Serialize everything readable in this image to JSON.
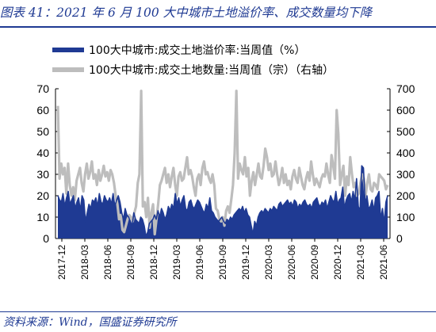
{
  "header": {
    "title": "图表 41：2021 年 6 月 100 大中城市土地溢价率、成交数量均下降"
  },
  "footer": {
    "source": "资料来源：Wind，国盛证券研究所"
  },
  "colors": {
    "title": "#1f3a93",
    "premium_series": "#1f3a93",
    "volume_series": "#bdbdbd"
  },
  "chart_data": {
    "type": "line",
    "legend_position": "top-left",
    "grid": false,
    "series": [
      {
        "name": "100大中城市:成交土地溢价率:当周值（%）",
        "axis": "left",
        "color": "#1f3a93",
        "area_fill": true,
        "values": [
          20,
          18,
          17,
          21,
          15,
          19,
          22,
          16,
          18,
          20,
          14,
          17,
          19,
          13,
          20,
          18,
          8,
          12,
          16,
          14,
          18,
          17,
          19,
          15,
          21,
          17,
          16,
          20,
          18,
          17,
          19,
          16,
          21,
          15,
          18,
          20,
          17,
          12,
          9,
          14,
          11,
          10,
          8,
          6,
          12,
          9,
          8,
          7,
          10,
          9,
          6,
          1,
          3,
          7,
          8,
          9,
          11,
          9,
          13,
          10,
          14,
          12,
          9,
          11,
          15,
          13,
          16,
          14,
          21,
          16,
          19,
          15,
          18,
          20,
          14,
          13,
          17,
          18,
          15,
          14,
          16,
          18,
          17,
          15,
          13,
          12,
          16,
          14,
          19,
          13,
          12,
          10,
          9,
          8,
          9,
          10,
          8,
          7,
          9,
          8,
          10,
          9,
          11,
          12,
          13,
          14,
          13,
          15,
          12,
          14,
          11,
          10,
          6,
          2,
          8,
          6,
          10,
          12,
          13,
          12,
          14,
          13,
          12,
          14,
          13,
          15,
          14,
          13,
          16,
          17,
          15,
          16,
          17,
          18,
          16,
          17,
          15,
          18,
          17,
          14,
          16,
          15,
          17,
          18,
          16,
          15,
          16,
          14,
          17,
          18,
          19,
          16,
          15,
          17,
          16,
          18,
          14,
          17,
          20,
          18,
          17,
          22,
          16,
          18,
          19,
          24,
          14,
          18,
          20,
          21,
          17,
          22,
          18,
          28,
          15,
          13,
          34,
          33,
          16,
          20,
          14,
          15,
          18,
          13,
          19,
          20,
          22,
          9,
          14,
          7,
          17,
          20
        ]
      },
      {
        "name": "100大中城市:成交土地数量:当周值（宗）（右轴）",
        "axis": "right",
        "color": "#bdbdbd",
        "values": [
          620,
          280,
          350,
          300,
          330,
          210,
          350,
          250,
          200,
          240,
          180,
          270,
          300,
          330,
          260,
          220,
          300,
          350,
          280,
          310,
          360,
          280,
          300,
          250,
          320,
          270,
          300,
          340,
          290,
          310,
          270,
          320,
          300,
          260,
          200,
          160,
          90,
          110,
          40,
          30,
          60,
          90,
          110,
          100,
          80,
          120,
          150,
          260,
          300,
          690,
          150,
          170,
          100,
          190,
          50,
          120,
          160,
          20,
          90,
          160,
          250,
          270,
          300,
          330,
          260,
          300,
          240,
          290,
          330,
          250,
          200,
          290,
          310,
          270,
          280,
          330,
          380,
          300,
          320,
          290,
          240,
          200,
          280,
          300,
          250,
          330,
          360,
          300,
          310,
          280,
          260,
          300,
          250,
          140,
          130,
          90,
          80,
          100,
          60,
          130,
          150,
          120,
          180,
          250,
          400,
          690,
          280,
          350,
          320,
          300,
          380,
          290,
          330,
          200,
          270,
          310,
          250,
          300,
          350,
          290,
          280,
          340,
          420,
          380,
          320,
          350,
          290,
          300,
          360,
          300,
          250,
          280,
          330,
          260,
          300,
          250,
          270,
          230,
          290,
          320,
          280,
          260,
          330,
          290,
          250,
          230,
          280,
          310,
          270,
          360,
          300,
          250,
          280,
          260,
          240,
          280,
          300,
          290,
          350,
          300,
          260,
          390,
          340,
          280,
          600,
          490,
          250,
          300,
          340,
          200,
          290,
          250,
          380,
          300,
          240,
          260,
          200,
          210,
          260,
          300,
          280,
          200,
          260,
          300,
          230,
          220,
          260,
          250,
          230,
          300,
          290,
          280,
          270,
          230,
          250
        ]
      }
    ],
    "x_labels": [
      "2017-12",
      "2018-03",
      "2018-06",
      "2018-09",
      "2018-12",
      "2019-03",
      "2019-06",
      "2019-09",
      "2019-12",
      "2020-03",
      "2020-06",
      "2020-09",
      "2020-12",
      "2021-03",
      "2021-06"
    ],
    "left_axis": {
      "ylim": [
        0,
        70
      ],
      "ticks": [
        "0",
        "10",
        "20",
        "30",
        "40",
        "50",
        "60",
        "70"
      ]
    },
    "right_axis": {
      "ylim": [
        0,
        700
      ],
      "ticks": [
        "0",
        "100",
        "200",
        "300",
        "400",
        "500",
        "600",
        "700"
      ]
    }
  }
}
